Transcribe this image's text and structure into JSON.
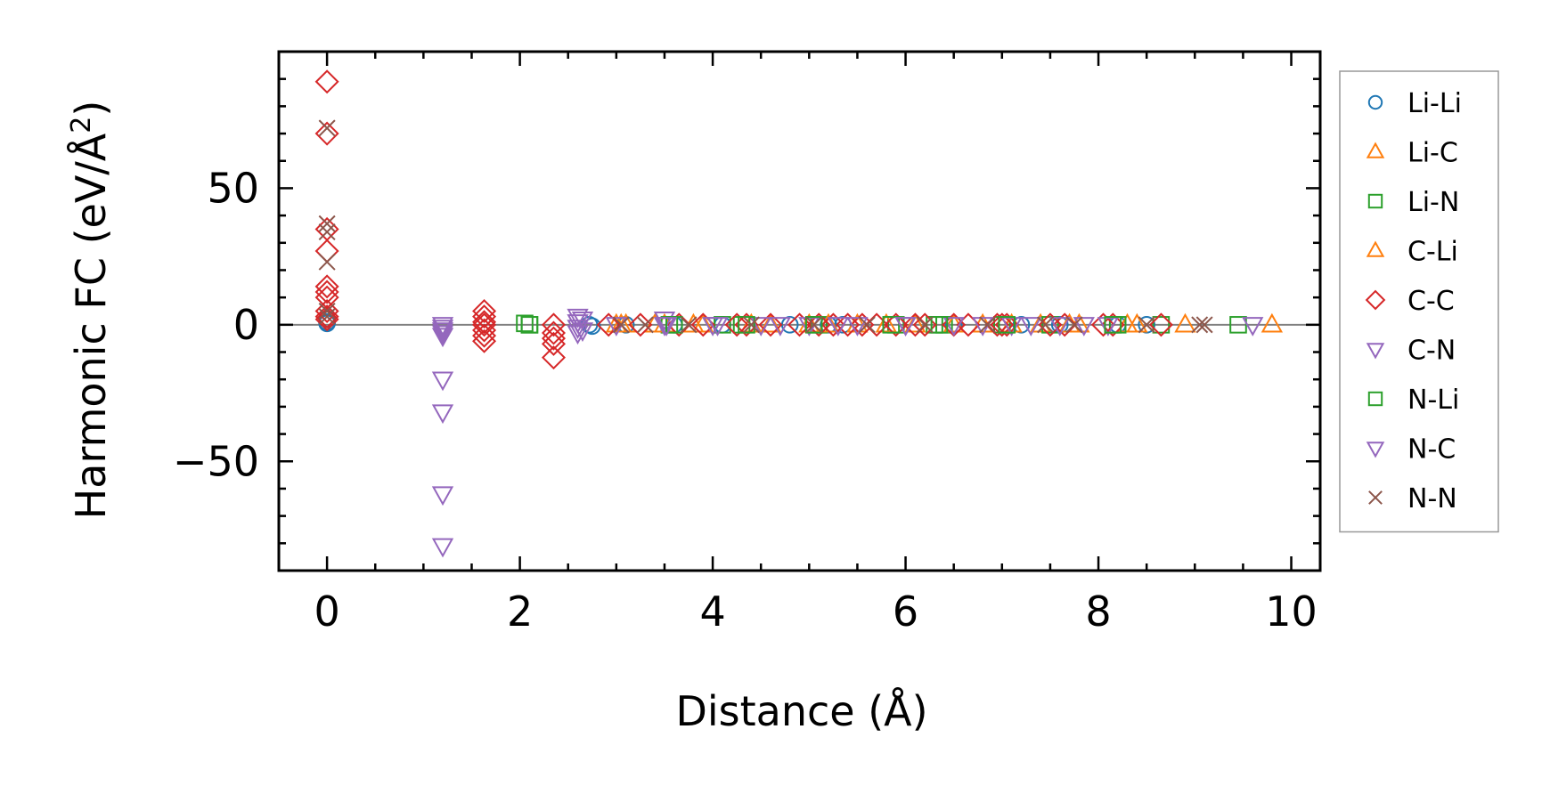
{
  "chart_data": {
    "type": "scatter",
    "xlabel": "Distance (Å)",
    "ylabel_main": "Harmonic FC (eV/Å",
    "ylabel_sup": "2",
    "ylabel_close": ")",
    "xlim": [
      -0.5,
      10.3
    ],
    "ylim": [
      -90,
      100
    ],
    "xticks": [
      0,
      2,
      4,
      6,
      8,
      10
    ],
    "xtick_labels": [
      "0",
      "2",
      "4",
      "6",
      "8",
      "10"
    ],
    "yticks": [
      -50,
      0,
      50
    ],
    "ytick_labels": [
      "−50",
      "0",
      "50"
    ],
    "grid": false,
    "zero_line": true,
    "legend_position": "right",
    "series": [
      {
        "name": "Li-Li",
        "marker": "circle",
        "color": "#1f77b4",
        "x": [
          0,
          0,
          0,
          2.72,
          2.75,
          3.1,
          3.6,
          4.1,
          4.8,
          5.2,
          5.35,
          5.9,
          6.5,
          7.2,
          7.6,
          8.2,
          8.5
        ],
        "y": [
          2,
          1,
          0.5,
          0,
          -0.5,
          0,
          0,
          0,
          0,
          0,
          0,
          0,
          0,
          0,
          0,
          0,
          0
        ]
      },
      {
        "name": "Li-C",
        "marker": "triangle-up",
        "color": "#ff7f0e",
        "x": [
          3.0,
          3.1,
          3.5,
          3.8,
          4.4,
          5.0,
          5.5,
          6.1,
          6.8,
          7.4,
          7.8,
          8.3,
          8.9,
          9.8
        ],
        "y": [
          0,
          0,
          0,
          0,
          0,
          0,
          0,
          0,
          0,
          0,
          0,
          0,
          0,
          0
        ]
      },
      {
        "name": "Li-N",
        "marker": "square",
        "color": "#2ca02c",
        "x": [
          2.05,
          2.1,
          3.55,
          4.1,
          4.3,
          5.1,
          5.9,
          6.3,
          6.4,
          7.0,
          7.5,
          8.2,
          8.65,
          9.45
        ],
        "y": [
          0.5,
          0,
          0,
          0,
          0,
          0,
          0,
          0,
          0,
          0,
          0,
          0,
          0,
          0
        ]
      },
      {
        "name": "C-Li",
        "marker": "triangle-up",
        "color": "#ff7f0e",
        "x": [
          3.05,
          3.4,
          3.9,
          4.6,
          5.2,
          5.8,
          6.5,
          7.1,
          7.7,
          8.4
        ],
        "y": [
          0,
          0,
          0,
          0,
          0,
          0,
          0,
          0,
          0,
          0
        ]
      },
      {
        "name": "C-C",
        "marker": "diamond",
        "color": "#d62728",
        "x": [
          0,
          0,
          0,
          0,
          0,
          0,
          0,
          0,
          0,
          0,
          1.63,
          1.63,
          1.63,
          1.63,
          1.63,
          1.63,
          1.63,
          2.35,
          2.35,
          2.35,
          2.35,
          2.35,
          2.92,
          3.25,
          3.65,
          3.9,
          4.25,
          4.35,
          4.6,
          4.9,
          5.1,
          5.25,
          5.4,
          5.55,
          5.7,
          5.9,
          6.1,
          6.2,
          6.5,
          6.65,
          6.95,
          7.0,
          7.05,
          7.5,
          7.65,
          8.05,
          8.15,
          8.65
        ],
        "y": [
          89,
          70,
          35,
          27,
          14,
          12,
          10,
          5,
          3,
          2,
          5,
          3,
          1,
          0,
          -2,
          -4,
          -6,
          0,
          -3,
          -5,
          -7,
          -12,
          0,
          0,
          0,
          0,
          0,
          0,
          0,
          0,
          0,
          0,
          0,
          0,
          0,
          0,
          0,
          0,
          0,
          0,
          0,
          0,
          0,
          0,
          0,
          0,
          0,
          0
        ]
      },
      {
        "name": "C-N",
        "marker": "triangle-down",
        "color": "#9467bd",
        "x": [
          1.2,
          1.2,
          1.2,
          1.2,
          1.2,
          1.2,
          1.2,
          2.6,
          2.6,
          2.6,
          2.6,
          3.0,
          3.5,
          3.5,
          4.0,
          4.5,
          5.0,
          5.5,
          6.0,
          6.5,
          7.1,
          7.6,
          8.1,
          9.6
        ],
        "y": [
          0,
          -2,
          -4,
          -20,
          -32,
          -62,
          -81,
          3,
          1,
          -1,
          -3,
          0,
          2,
          0,
          0,
          0,
          0,
          0,
          0,
          0,
          0,
          0,
          0,
          0
        ]
      },
      {
        "name": "N-Li",
        "marker": "square",
        "color": "#2ca02c",
        "x": [
          2.1,
          3.6,
          4.35,
          5.05,
          5.85,
          6.35,
          7.05,
          8.15
        ],
        "y": [
          0,
          0,
          0,
          0,
          0,
          0,
          0,
          0
        ]
      },
      {
        "name": "N-C",
        "marker": "triangle-down",
        "color": "#9467bd",
        "x": [
          1.2,
          1.2,
          2.65,
          2.65,
          3.52,
          4.05,
          4.7,
          5.3,
          6.0,
          6.8,
          7.3,
          7.85
        ],
        "y": [
          -1,
          -3,
          2,
          -2,
          0,
          0,
          0,
          0,
          0,
          0,
          0,
          0
        ]
      },
      {
        "name": "N-N",
        "marker": "x",
        "color": "#8c564b",
        "x": [
          0,
          0,
          0,
          0,
          0,
          0,
          3.05,
          3.3,
          3.75,
          4.4,
          5.05,
          5.6,
          6.2,
          6.85,
          7.45,
          7.75,
          8.5,
          9.05,
          9.1
        ],
        "y": [
          72,
          37,
          34,
          23,
          5,
          3,
          0,
          0,
          0,
          0,
          0,
          0,
          0,
          0,
          0,
          0,
          0,
          0,
          0
        ]
      }
    ]
  }
}
